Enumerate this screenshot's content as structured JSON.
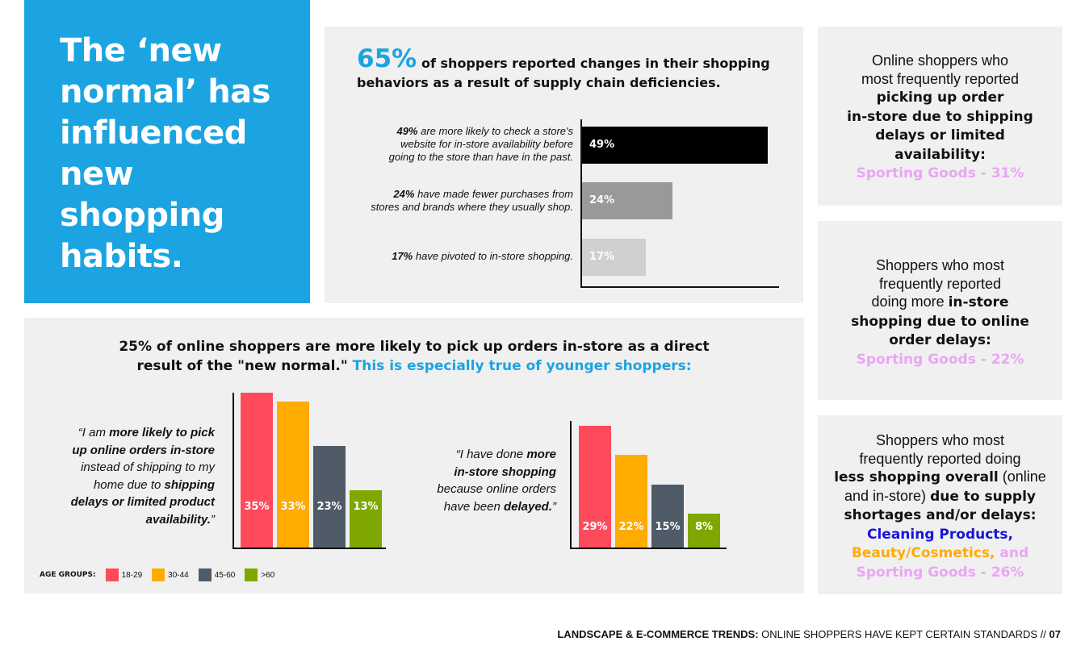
{
  "hero": {
    "title": "The ‘new normal’ has influenced new shopping habits."
  },
  "top_panel": {
    "big_stat": "65%",
    "headline_1": "of shoppers reported changes in their shopping",
    "headline_2": "behaviors as a result of supply chain deficiencies.",
    "rows": [
      {
        "bold": "49%",
        "text_1": " are more likely to check a store's",
        "text_2": "website for in-store availability before",
        "text_3": "going to the store than have in the past.",
        "value_label": "49%"
      },
      {
        "bold": "24%",
        "text_1": " have made fewer purchases from",
        "text_2": "stores and brands where they usually shop.",
        "value_label": "24%"
      },
      {
        "bold": "17%",
        "text_1": " have pivoted to in-store shopping.",
        "value_label": "17%"
      }
    ]
  },
  "bottom_panel": {
    "headline_1": "25% of online shoppers are more likely to pick up orders in-store as a direct",
    "headline_2a": "result of the \"new normal.\"",
    "headline_2b": " This is especially true of younger shoppers:",
    "quote_1": {
      "p1": "“I am ",
      "b1": "more likely to pick",
      "b2": "up online orders in-store",
      "p2": "instead of shipping to my",
      "p3": "home due to ",
      "b3": "shipping",
      "b4": "delays or limited product",
      "b5": "availability.",
      "p4": "”"
    },
    "quote_2": {
      "p1": "“I have done ",
      "b1": "more",
      "b2": "in-store shopping",
      "p2": "because online orders",
      "p3": "have been ",
      "b3": "delayed.",
      "p4": "”"
    },
    "legend": {
      "title": "AGE GROUPS:",
      "items": [
        {
          "label": "18-29",
          "color": "#ff4a5c"
        },
        {
          "label": "30-44",
          "color": "#ffab00"
        },
        {
          "label": "45-60",
          "color": "#4f5b67"
        },
        {
          "label": ">60",
          "color": "#7ea800"
        }
      ]
    }
  },
  "right_panels": [
    {
      "l1": "Online shoppers who",
      "l2": "most frequently reported",
      "b1": "picking up order",
      "b2": "in-store due to shipping",
      "b3": "delays or limited",
      "b4": "availability:",
      "highlight": "Sporting Goods - 31%"
    },
    {
      "l1": "Shoppers who most",
      "l2": "frequently reported",
      "l3": "doing more ",
      "b1": "in-store",
      "b2": "shopping due to online",
      "b3": "order delays:",
      "highlight": "Sporting Goods - 22%"
    },
    {
      "l1": "Shoppers who most",
      "l2": "frequently reported doing",
      "b1": "less shopping overall",
      "l3": " (online",
      "l4": "and in-store) ",
      "b2": "due to supply",
      "b3": "shortages and/or delays:",
      "h1": "Cleaning Products,",
      "h2": "Beauty/Cosmetics,",
      "h2b": " and",
      "h3": "Sporting Goods - 26%"
    }
  ],
  "footer": {
    "bold": "LANDSCAPE & E-COMMERCE TRENDS:",
    "text": " ONLINE SHOPPERS HAVE KEPT CERTAIN STANDARDS // ",
    "page": "07"
  },
  "chart_data": [
    {
      "type": "bar",
      "orientation": "horizontal",
      "title": "65% of shoppers reported changes in their shopping behaviors as a result of supply chain deficiencies.",
      "categories": [
        "Check store website for in-store availability",
        "Fewer purchases from usual stores and brands",
        "Pivoted to in-store shopping"
      ],
      "values": [
        49,
        24,
        17
      ],
      "colors": [
        "#000000",
        "#999999",
        "#d0d0d0"
      ],
      "ylim": [
        0,
        53
      ]
    },
    {
      "type": "bar",
      "title": "More likely to pick up online orders in-store",
      "categories": [
        "18-29",
        "30-44",
        "45-60",
        ">60"
      ],
      "values": [
        35,
        33,
        23,
        13
      ],
      "labels": [
        "35%",
        "33%",
        "23%",
        "13%"
      ],
      "colors": [
        "#ff4a5c",
        "#ffab00",
        "#4f5b67",
        "#7ea800"
      ],
      "ylim": [
        0,
        35
      ]
    },
    {
      "type": "bar",
      "title": "Done more in-store shopping because online orders have been delayed",
      "categories": [
        "18-29",
        "30-44",
        "45-60",
        ">60"
      ],
      "values": [
        29,
        22,
        15,
        8
      ],
      "labels": [
        "29%",
        "22%",
        "15%",
        "8%"
      ],
      "colors": [
        "#ff4a5c",
        "#ffab00",
        "#4f5b67",
        "#7ea800"
      ],
      "ylim": [
        0,
        29
      ]
    }
  ]
}
